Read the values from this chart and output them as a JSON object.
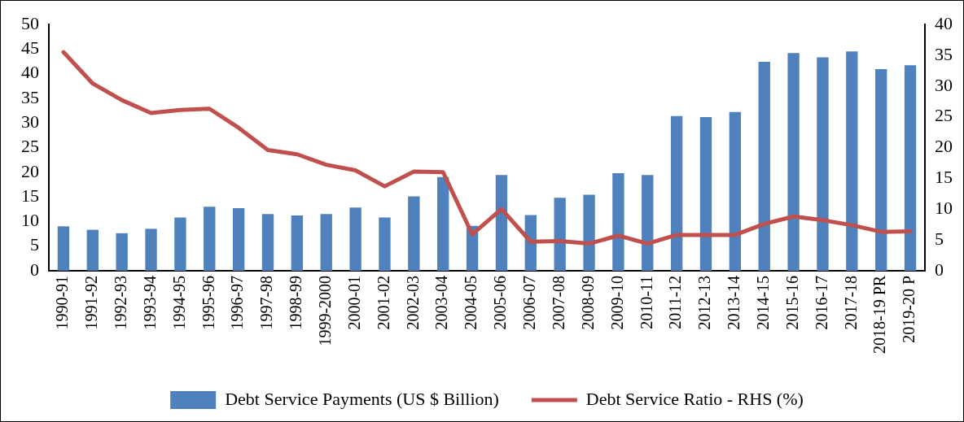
{
  "chart_data": {
    "type": "bar",
    "categories": [
      "1990-91",
      "1991-92",
      "1992-93",
      "1993-94",
      "1994-95",
      "1995-96",
      "1996-97",
      "1997-98",
      "1998-99",
      "1999-2000",
      "2000-01",
      "2001-02",
      "2002-03",
      "2003-04",
      "2004-05",
      "2005-06",
      "2006-07",
      "2007-08",
      "2008-09",
      "2009-10",
      "2010-11",
      "2011-12",
      "2012-13",
      "2013-14",
      "2014-15",
      "2015-16",
      "2016-17",
      "2017-18",
      "2018-19 PR",
      "2019-20 P"
    ],
    "series": [
      {
        "name": "Debt Service Payments (US $ Billion)",
        "color": "#4f81bd",
        "values": [
          9.0,
          8.3,
          7.6,
          8.5,
          10.8,
          13.0,
          12.7,
          11.5,
          11.2,
          11.5,
          12.8,
          10.8,
          15.1,
          19.0,
          9.1,
          19.4,
          11.3,
          14.8,
          15.4,
          19.8,
          19.4,
          31.4,
          31.2,
          32.2,
          42.4,
          44.2,
          43.3,
          44.5,
          40.9,
          41.7
        ]
      },
      {
        "name": "Debt Service Ratio - RHS (%)",
        "type": "line",
        "axis": "y2",
        "color": "#c0504d",
        "values": [
          35.5,
          30.4,
          27.7,
          25.6,
          26.1,
          26.3,
          23.2,
          19.6,
          18.9,
          17.2,
          16.3,
          13.7,
          16.1,
          16.0,
          5.9,
          10.0,
          4.7,
          4.8,
          4.4,
          5.7,
          4.4,
          5.8,
          5.8,
          5.8,
          7.6,
          8.8,
          8.2,
          7.4,
          6.3,
          6.4
        ]
      }
    ],
    "ylim": [
      0,
      50
    ],
    "yticks": [
      0,
      5,
      10,
      15,
      20,
      25,
      30,
      35,
      40,
      45,
      50
    ],
    "y2lim": [
      0,
      40
    ],
    "y2ticks": [
      0,
      5,
      10,
      15,
      20,
      25,
      30,
      35,
      40
    ],
    "grid": false,
    "legend": "bottom",
    "marker": "none",
    "line_style": "solid"
  }
}
